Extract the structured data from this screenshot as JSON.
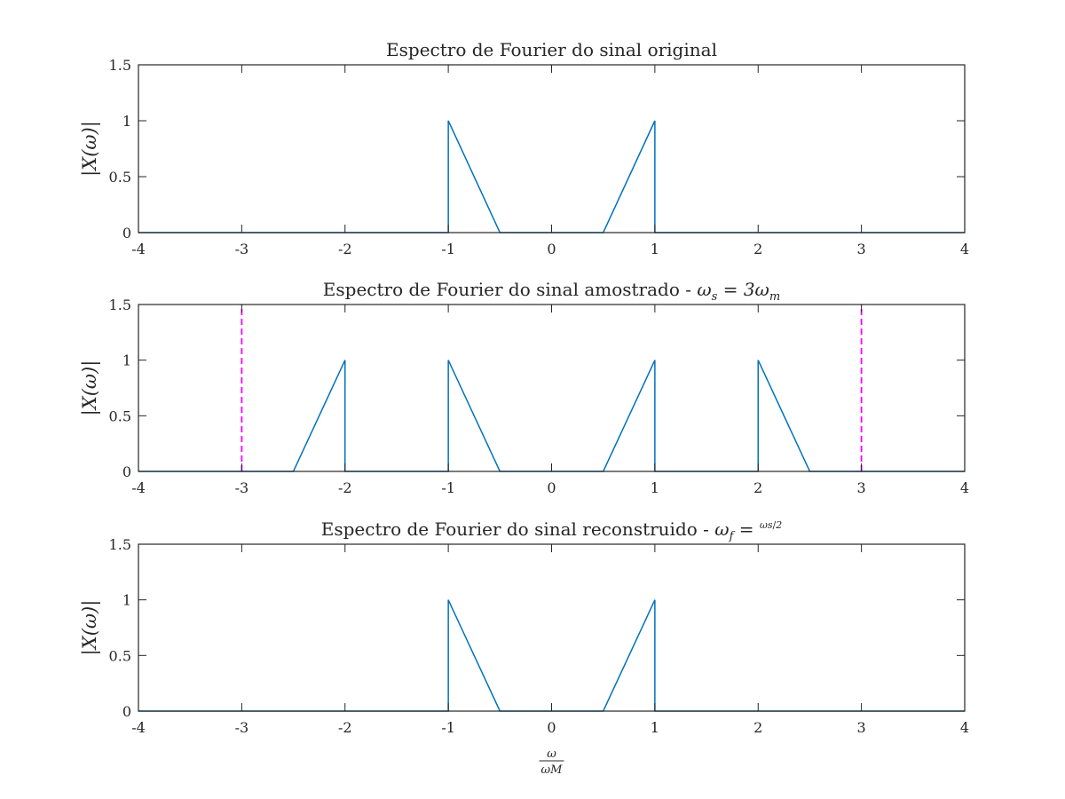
{
  "chart_data": [
    {
      "type": "line",
      "title": "Espectro de Fourier do sinal original",
      "ylabel": "|X(ω)|",
      "xlabel": "",
      "xlim": [
        -4,
        4
      ],
      "ylim": [
        0,
        1.5
      ],
      "xticks": [
        -4,
        -3,
        -2,
        -1,
        0,
        1,
        2,
        3,
        4
      ],
      "yticks": [
        0,
        0.5,
        1,
        1.5
      ],
      "grid": false,
      "series": [
        {
          "color": "#0072BD",
          "dashed": false,
          "x": [
            -4,
            -1,
            -1,
            -0.5,
            0.5,
            1,
            1,
            4
          ],
          "y": [
            0,
            0,
            1,
            0,
            0,
            1,
            0,
            0
          ]
        }
      ]
    },
    {
      "type": "line",
      "title": "Espectro de Fourier do sinal amostrado - ",
      "title_math": {
        "base": "ω",
        "sub": "s",
        "rest": " = 3ω",
        "rest_sub": "m"
      },
      "ylabel": "|X(ω)|",
      "xlabel": "",
      "xlim": [
        -4,
        4
      ],
      "ylim": [
        0,
        1.5
      ],
      "xticks": [
        -4,
        -3,
        -2,
        -1,
        0,
        1,
        2,
        3,
        4
      ],
      "yticks": [
        0,
        0.5,
        1,
        1.5
      ],
      "grid": false,
      "series": [
        {
          "color": "#0072BD",
          "dashed": false,
          "x": [
            -4,
            -2.5,
            -2,
            -2,
            -1,
            -1,
            -0.5,
            0.5,
            1,
            1,
            2,
            2,
            2.5,
            4
          ],
          "y": [
            0,
            0,
            1,
            0,
            0,
            1,
            0,
            0,
            1,
            0,
            0,
            1,
            0,
            0
          ]
        },
        {
          "color": "#FF00FF",
          "dashed": true,
          "x": [
            -3,
            -3
          ],
          "y": [
            0,
            1.5
          ]
        },
        {
          "color": "#FF00FF",
          "dashed": true,
          "x": [
            3,
            3
          ],
          "y": [
            0,
            1.5
          ]
        }
      ]
    },
    {
      "type": "line",
      "title": "Espectro de Fourier do sinal reconstruido - ",
      "title_math": {
        "base": "ω",
        "sub": "f",
        "rest": " = ",
        "frac_num": "ωs",
        "frac_den": "2"
      },
      "ylabel": "|X(ω)|",
      "xlabel": "ω/ωM",
      "xlim": [
        -4,
        4
      ],
      "ylim": [
        0,
        1.5
      ],
      "xticks": [
        -4,
        -3,
        -2,
        -1,
        0,
        1,
        2,
        3,
        4
      ],
      "yticks": [
        0,
        0.5,
        1,
        1.5
      ],
      "grid": false,
      "series": [
        {
          "color": "#0072BD",
          "dashed": false,
          "x": [
            -4,
            -1,
            -1,
            -0.5,
            0.5,
            1,
            1,
            4
          ],
          "y": [
            0,
            0,
            1,
            0,
            0,
            1,
            0,
            0
          ]
        }
      ]
    }
  ]
}
